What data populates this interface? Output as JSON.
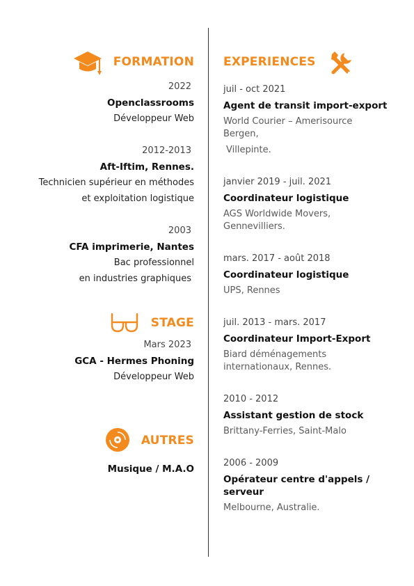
{
  "colors": {
    "accent": "#f28a1e",
    "divider": "#333333"
  },
  "icons": {
    "formation": "graduation-cap-icon",
    "experiences": "tools-icon",
    "stage": "glasses-icon",
    "autres": "vinyl-record-icon"
  },
  "formation": {
    "title": "FORMATION",
    "items": [
      {
        "date": "2022",
        "school": "Openclassrooms",
        "line1": "Développeur Web"
      },
      {
        "date": "2012-2013",
        "school": "Aft-Iftim, Rennes.",
        "line1": "Technicien supérieur en méthodes",
        "line2": "et exploitation logistique"
      },
      {
        "date": "2003",
        "school": "CFA imprimerie, Nantes",
        "line1": "Bac professionnel",
        "line2": "en industries graphiques"
      }
    ]
  },
  "stage": {
    "title": "STAGE",
    "date": "Mars 2023",
    "company": "GCA - Hermes Phoning",
    "role": "Développeur Web"
  },
  "autres": {
    "title": "AUTRES",
    "item": "Musique / M.A.O"
  },
  "experiences": {
    "title": "EXPERIENCES",
    "items": [
      {
        "date": "juil - oct 2021",
        "role": "Agent de transit import-export",
        "company": "World Courier – Amerisource Bergen,",
        "company2": "Villepinte."
      },
      {
        "date": "janvier 2019 - juil. 2021",
        "role": "Coordinateur logistique",
        "company": "AGS Worldwide Movers, Gennevilliers."
      },
      {
        "date": "mars. 2017 - août 2018",
        "role": "Coordinateur logistique",
        "company": "UPS, Rennes"
      },
      {
        "date": "juil. 2013 - mars. 2017",
        "role": "Coordinateur Import-Export",
        "company": "Biard déménagements internationaux, Rennes."
      },
      {
        "date": "2010 - 2012",
        "role": "Assistant gestion de stock",
        "company": "Brittany-Ferries, Saint-Malo"
      },
      {
        "date": "2006 - 2009",
        "role": "Opérateur centre d'appels / serveur",
        "company": "Melbourne, Australie."
      }
    ]
  }
}
